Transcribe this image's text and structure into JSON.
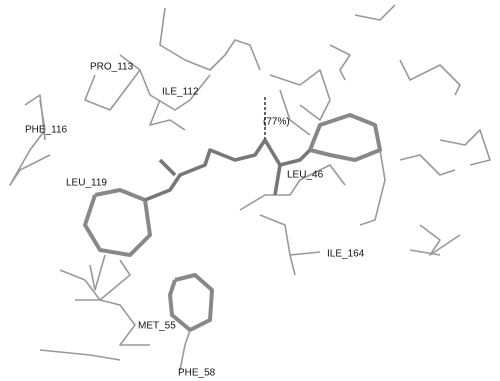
{
  "labels": [
    "PRO_113",
    "ILE_112",
    "PHE_116",
    "(77%)",
    "LEU_119",
    "LEU_46",
    "ILE_164",
    "MET_55",
    "PHE_58"
  ]
}
